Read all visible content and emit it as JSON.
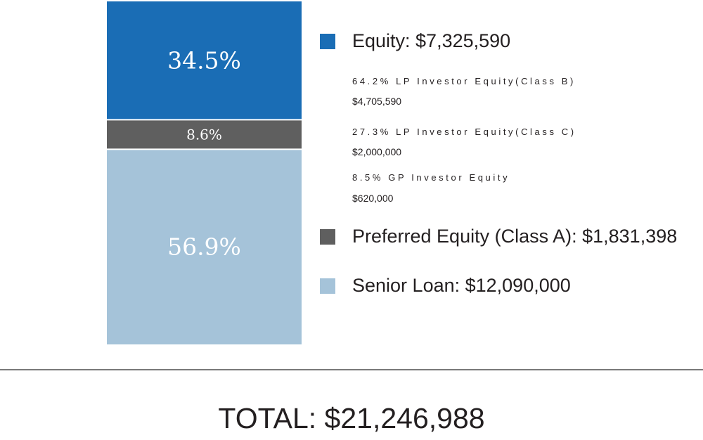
{
  "chart_data": {
    "type": "bar",
    "stacked": true,
    "categories": [
      ""
    ],
    "series": [
      {
        "name": "Equity",
        "values": [
          34.5
        ],
        "label": "34.5%",
        "amount": "$7,325,590",
        "color": "#1a6db5"
      },
      {
        "name": "Preferred Equity (Class A)",
        "values": [
          8.6
        ],
        "label": "8.6%",
        "amount": "$1,831,398",
        "color": "#5f5f5f"
      },
      {
        "name": "Senior Loan",
        "values": [
          56.9
        ],
        "label": "56.9%",
        "amount": "$12,090,000",
        "color": "#a5c3d9"
      }
    ],
    "ylim": [
      0,
      100
    ],
    "grid": false,
    "legend_position": "right"
  },
  "legend": [
    {
      "text": "Equity: $7,325,590",
      "color": "#1a6db5"
    },
    {
      "text": "Preferred Equity (Class A): $1,831,398",
      "color": "#5f5f5f"
    },
    {
      "text": "Senior Loan: $12,090,000",
      "color": "#a5c3d9"
    }
  ],
  "equity_breakdown": [
    {
      "label": "64.2% LP Investor Equity(Class B)",
      "amount": "$4,705,590"
    },
    {
      "label": "27.3% LP Investor Equity(Class C)",
      "amount": "$2,000,000"
    },
    {
      "label": "8.5% GP Investor Equity",
      "amount": "$620,000"
    }
  ],
  "total": "TOTAL: $21,246,988"
}
